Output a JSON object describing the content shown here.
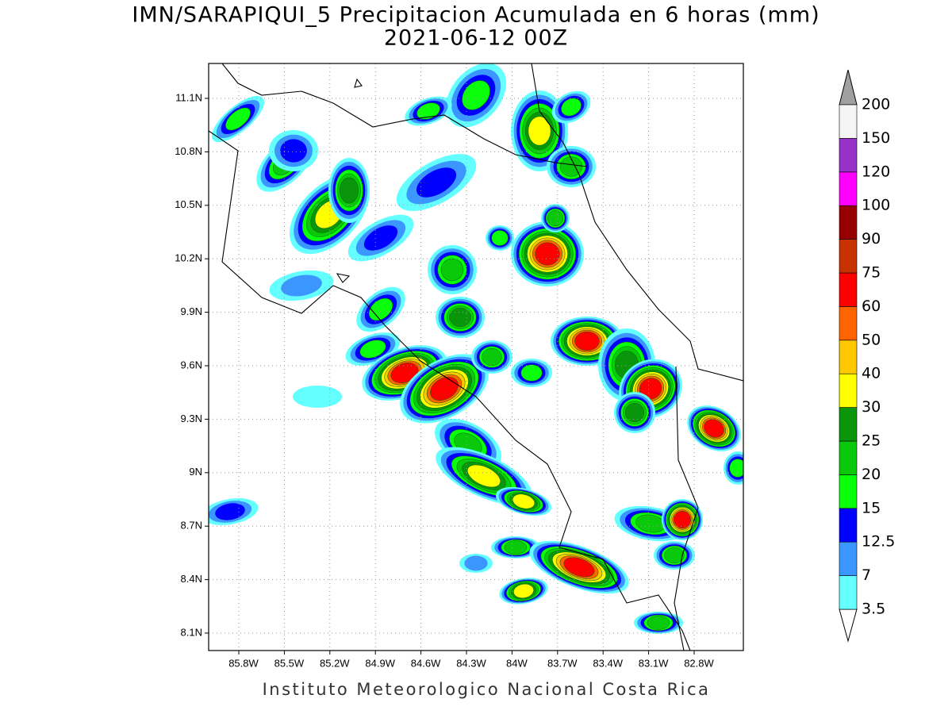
{
  "title": "IMN/SARAPIQUI_5 Precipitacion Acumulada en 6 horas (mm)",
  "subtitle": "2021-06-12 00Z",
  "map": {
    "latitude_labels": [
      "11.1N",
      "10.8N",
      "10.5N",
      "10.2N",
      "9.9N",
      "9.6N",
      "9.3N",
      "9N",
      "8.7N",
      "8.4N",
      "8.1N"
    ],
    "longitude_labels": [
      "85.8W",
      "85.5W",
      "85.2W",
      "84.9W",
      "84.6W",
      "84.3W",
      "84W",
      "83.7W",
      "83.4W",
      "83.1W",
      "82.8W"
    ]
  },
  "colorbar": {
    "levels": [
      3.5,
      7,
      12.5,
      15,
      20,
      25,
      30,
      40,
      50,
      60,
      75,
      90,
      100,
      120,
      150,
      200
    ],
    "colors": [
      "#64ffff",
      "#3c96ff",
      "#0000ff",
      "#0aff0a",
      "#0ac80a",
      "#0a960a",
      "#ffff00",
      "#ffc800",
      "#ff6400",
      "#ff0000",
      "#c83200",
      "#960000",
      "#ff00ff",
      "#9632c8",
      "#f5f5f5"
    ],
    "under_color": "#ffffff",
    "over_color": "#a0a0a0"
  },
  "footer": "Instituto Meteorologico Nacional Costa Rica"
}
